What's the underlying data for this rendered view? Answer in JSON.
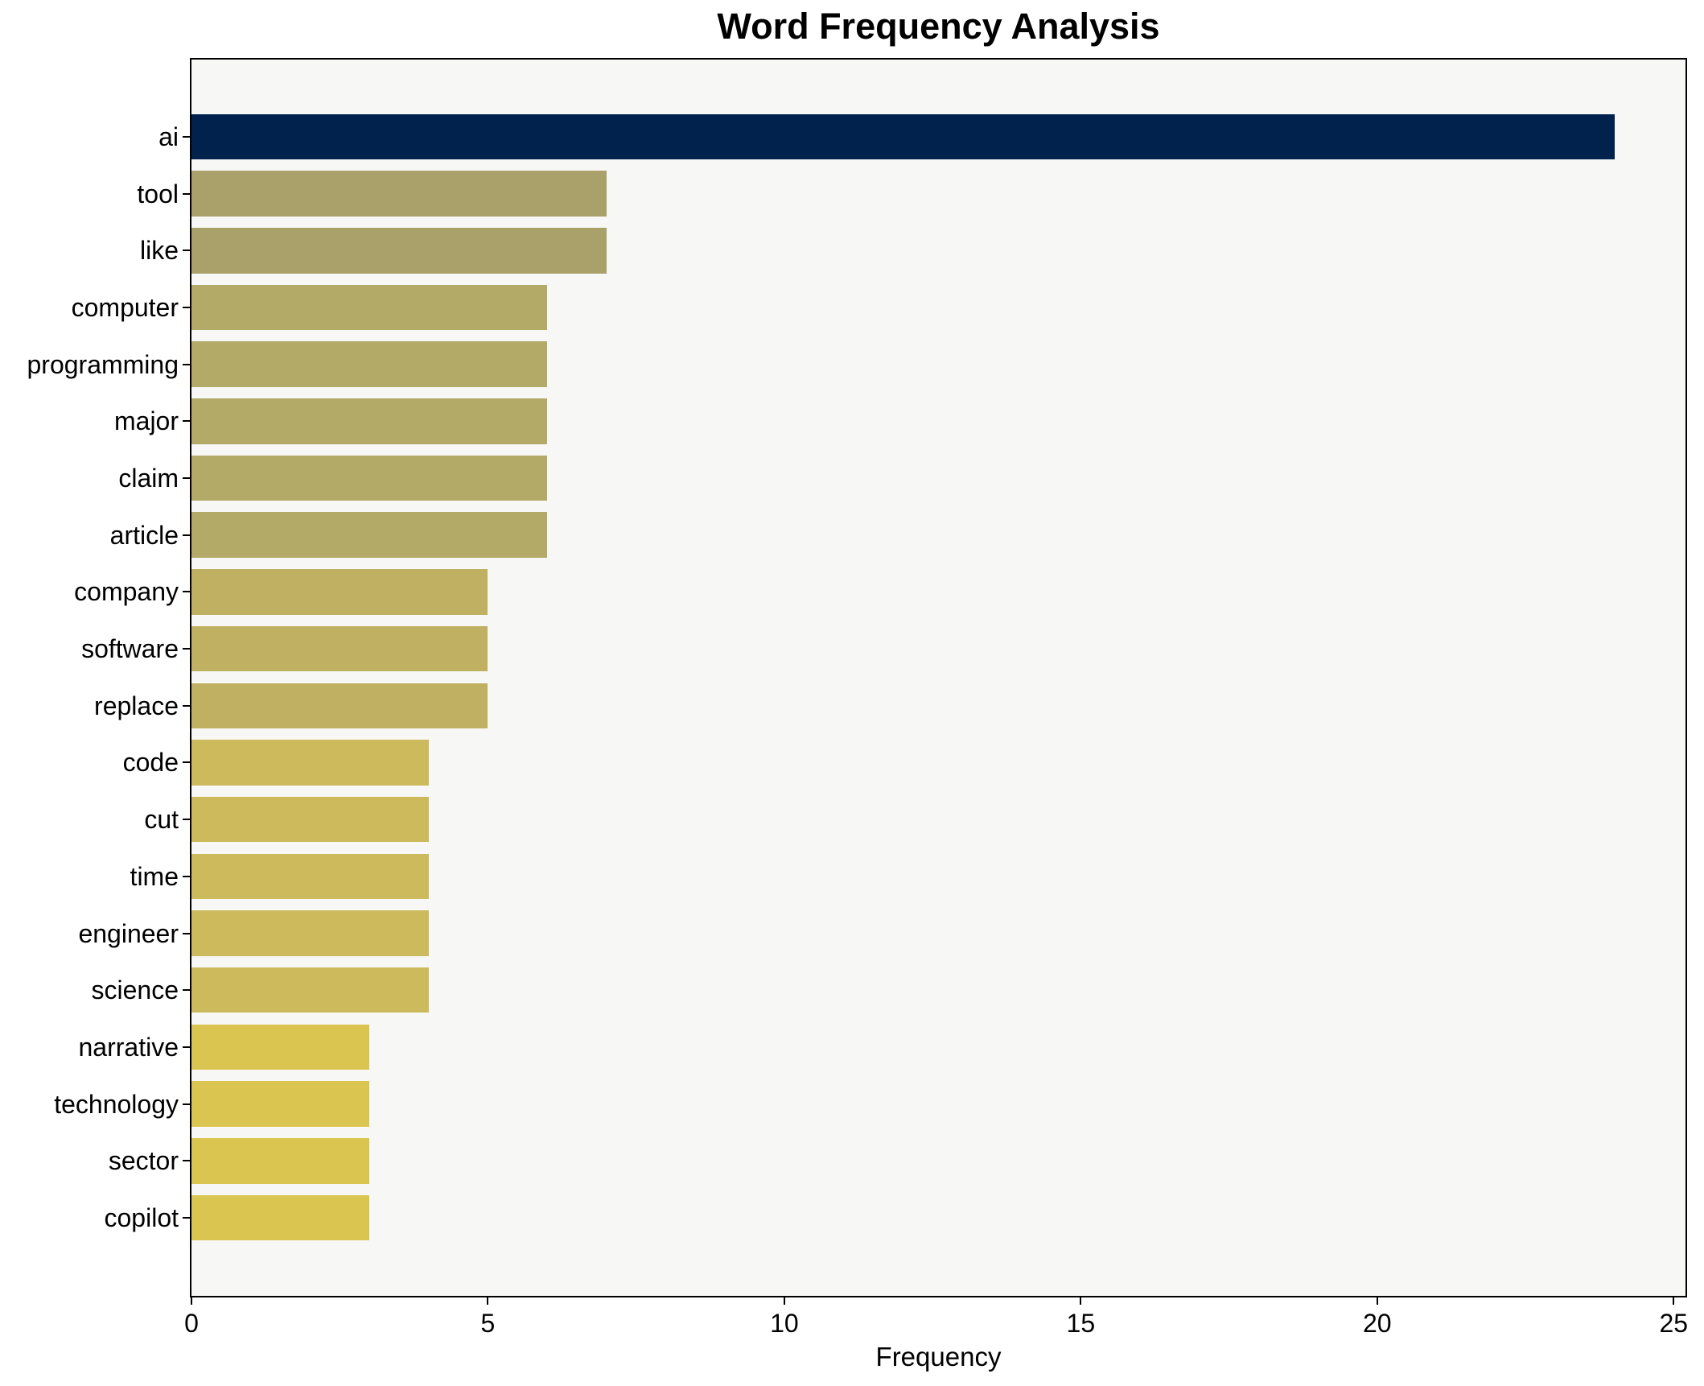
{
  "figure": {
    "background": "#ffffff",
    "plot_background": "#f7f7f5",
    "spine_color": "#000000",
    "text_color": "#000000"
  },
  "chart_data": {
    "type": "bar",
    "orientation": "horizontal",
    "title": "Word Frequency Analysis",
    "xlabel": "Frequency",
    "ylabel": "",
    "grid": false,
    "xlim": [
      0,
      25.2
    ],
    "xticks": [
      0,
      5,
      10,
      15,
      20,
      25
    ],
    "categories": [
      "ai",
      "tool",
      "like",
      "computer",
      "programming",
      "major",
      "claim",
      "article",
      "company",
      "software",
      "replace",
      "code",
      "cut",
      "time",
      "engineer",
      "science",
      "narrative",
      "technology",
      "sector",
      "copilot"
    ],
    "values": [
      24,
      7,
      7,
      6,
      6,
      6,
      6,
      6,
      5,
      5,
      5,
      4,
      4,
      4,
      4,
      4,
      3,
      3,
      3,
      3
    ],
    "bar_colors": [
      "#02224e",
      "#a9a06a",
      "#a9a06a",
      "#b3aa68",
      "#b3aa68",
      "#b3aa68",
      "#b3aa68",
      "#b3aa68",
      "#c0b162",
      "#c0b162",
      "#c0b162",
      "#cdba5c",
      "#cdba5c",
      "#cdba5c",
      "#cdba5c",
      "#cdba5c",
      "#dbc551",
      "#dbc551",
      "#dbc551",
      "#dbc551"
    ],
    "value_color_map": {
      "24": "#02224e",
      "7": "#a9a06a",
      "6": "#b3aa68",
      "5": "#c0b162",
      "4": "#cdba5c",
      "3": "#dbc551"
    }
  }
}
